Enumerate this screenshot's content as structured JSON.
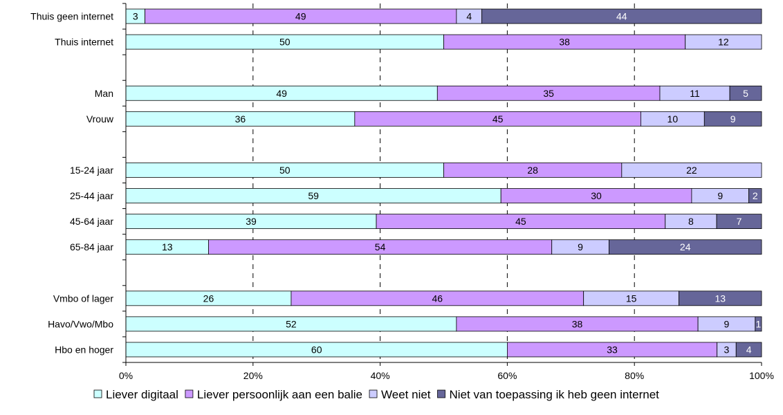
{
  "chart_data": {
    "type": "bar",
    "orientation": "horizontal",
    "stacked": "percent",
    "categories": [
      "Thuis geen internet",
      "Thuis internet",
      "",
      "Man",
      "Vrouw",
      "",
      "15-24 jaar",
      "25-44 jaar",
      "45-64 jaar",
      "65-84 jaar",
      "",
      "Vmbo of lager",
      "Havo/Vwo/Mbo",
      "Hbo en hoger"
    ],
    "series": [
      {
        "name": "Liever digitaal",
        "color": "#ccffff",
        "values": [
          3,
          50,
          null,
          49,
          36,
          null,
          50,
          59,
          39,
          13,
          null,
          26,
          52,
          60
        ]
      },
      {
        "name": "Liever persoonlijk aan een balie",
        "color": "#cc99ff",
        "values": [
          49,
          38,
          null,
          35,
          45,
          null,
          28,
          30,
          45,
          54,
          null,
          46,
          38,
          33
        ]
      },
      {
        "name": "Weet niet",
        "color": "#ccccff",
        "values": [
          4,
          12,
          null,
          11,
          10,
          null,
          22,
          9,
          8,
          9,
          null,
          15,
          9,
          3
        ]
      },
      {
        "name": "Niet van toepassing ik heb geen internet",
        "color": "#666699",
        "values": [
          44,
          null,
          null,
          5,
          9,
          null,
          null,
          2,
          7,
          24,
          null,
          13,
          1,
          4
        ]
      }
    ],
    "xticks": [
      "0%",
      "20%",
      "40%",
      "60%",
      "80%",
      "100%"
    ],
    "xlim": [
      0,
      100
    ],
    "title": "",
    "xlabel": "",
    "ylabel": "",
    "grid": "vertical dashed",
    "legend_position": "bottom"
  }
}
